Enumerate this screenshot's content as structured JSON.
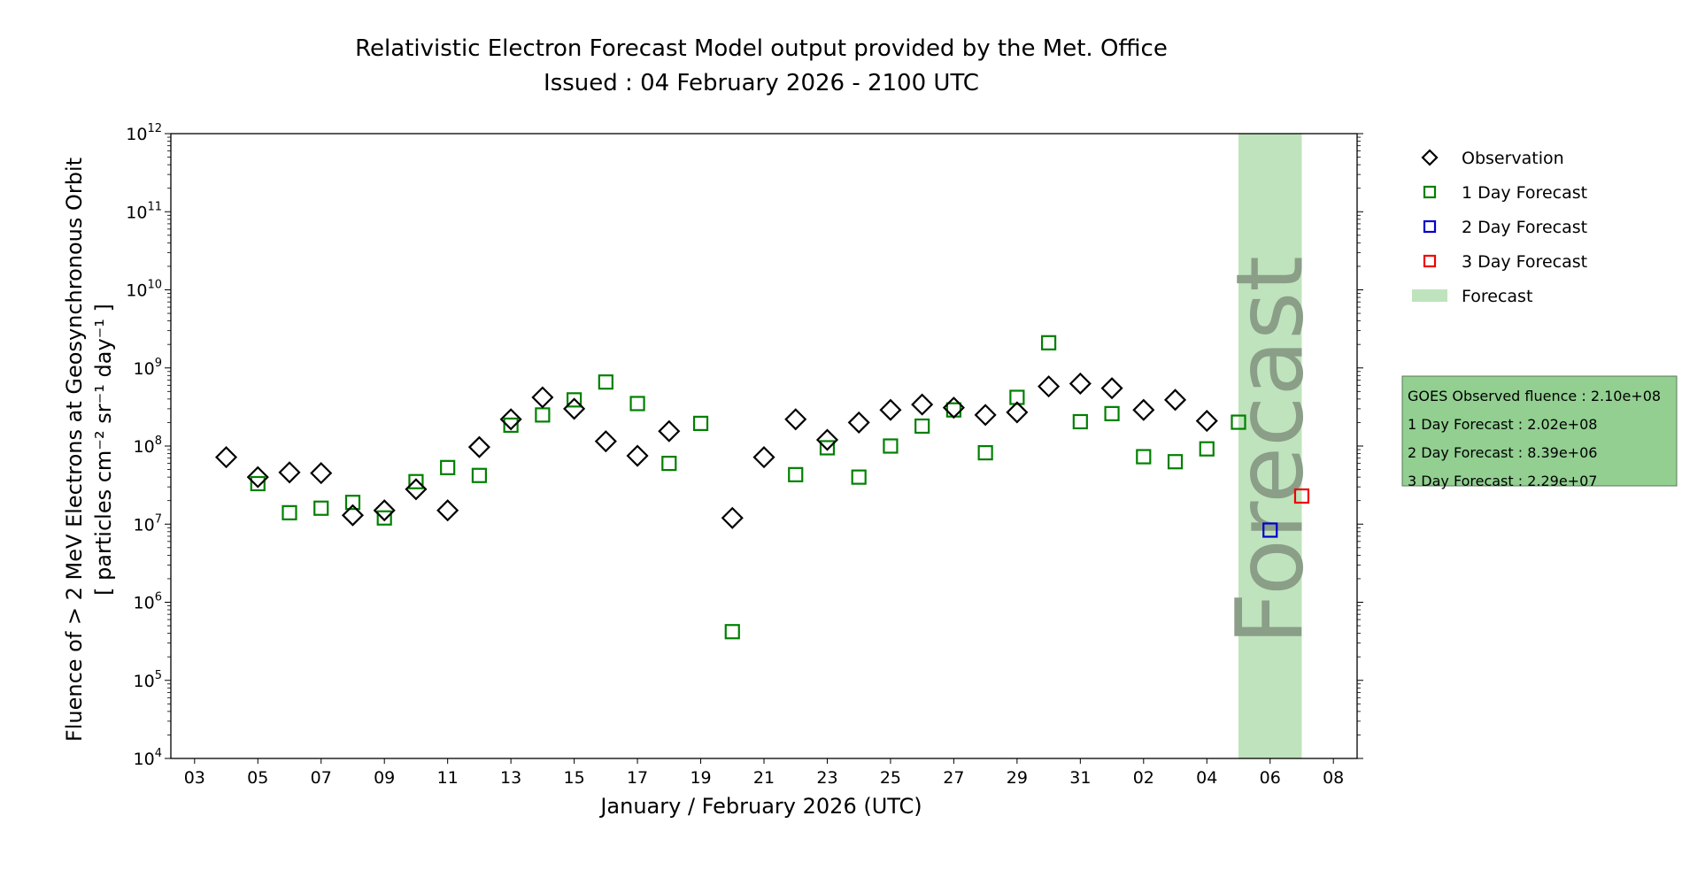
{
  "chart_data": {
    "type": "scatter",
    "title": "Relativistic Electron Forecast Model output provided by the Met. Office",
    "subtitle": "Issued : 04 February 2026 - 2100 UTC",
    "xlabel": "January / February 2026 (UTC)",
    "ylabel_line1": "Fluence of > 2 MeV Electrons at Geosynchronous Orbit",
    "ylabel_line2": "[ particles cm⁻² sr⁻¹ day⁻¹ ]",
    "y_scale": "log",
    "ylim": [
      10000,
      1000000000000
    ],
    "y_ticks": [
      {
        "base": "10",
        "exp": "4",
        "value": 10000
      },
      {
        "base": "10",
        "exp": "5",
        "value": 100000
      },
      {
        "base": "10",
        "exp": "6",
        "value": 1000000
      },
      {
        "base": "10",
        "exp": "7",
        "value": 10000000
      },
      {
        "base": "10",
        "exp": "8",
        "value": 100000000
      },
      {
        "base": "10",
        "exp": "9",
        "value": 1000000000
      },
      {
        "base": "10",
        "exp": "10",
        "value": 10000000000
      },
      {
        "base": "10",
        "exp": "11",
        "value": 100000000000
      },
      {
        "base": "10",
        "exp": "12",
        "value": 1000000000000
      }
    ],
    "xlim": [
      "2026-01-02T06:00",
      "2026-02-08T18:00"
    ],
    "x_ticks": [
      {
        "label": "03",
        "date": "2026-01-03"
      },
      {
        "label": "05",
        "date": "2026-01-05"
      },
      {
        "label": "07",
        "date": "2026-01-07"
      },
      {
        "label": "09",
        "date": "2026-01-09"
      },
      {
        "label": "11",
        "date": "2026-01-11"
      },
      {
        "label": "13",
        "date": "2026-01-13"
      },
      {
        "label": "15",
        "date": "2026-01-15"
      },
      {
        "label": "17",
        "date": "2026-01-17"
      },
      {
        "label": "19",
        "date": "2026-01-19"
      },
      {
        "label": "21",
        "date": "2026-01-21"
      },
      {
        "label": "23",
        "date": "2026-01-23"
      },
      {
        "label": "25",
        "date": "2026-01-25"
      },
      {
        "label": "27",
        "date": "2026-01-27"
      },
      {
        "label": "29",
        "date": "2026-01-29"
      },
      {
        "label": "31",
        "date": "2026-01-31"
      },
      {
        "label": "02",
        "date": "2026-02-02"
      },
      {
        "label": "04",
        "date": "2026-02-04"
      },
      {
        "label": "06",
        "date": "2026-02-06"
      },
      {
        "label": "08",
        "date": "2026-02-08"
      }
    ],
    "forecast_region": {
      "start": "2026-02-05",
      "end": "2026-02-07",
      "label": "Forecast",
      "color": "#bfe3bc"
    },
    "series": [
      {
        "name": "Observation",
        "marker": "diamond",
        "color": "#000000",
        "points": [
          {
            "x": "2026-01-04",
            "y": 72000000.0
          },
          {
            "x": "2026-01-05",
            "y": 40000000.0
          },
          {
            "x": "2026-01-06",
            "y": 46000000.0
          },
          {
            "x": "2026-01-07",
            "y": 45000000.0
          },
          {
            "x": "2026-01-08",
            "y": 13000000.0
          },
          {
            "x": "2026-01-09",
            "y": 15000000.0
          },
          {
            "x": "2026-01-10",
            "y": 28000000.0
          },
          {
            "x": "2026-01-11",
            "y": 15000000.0
          },
          {
            "x": "2026-01-12",
            "y": 97000000.0
          },
          {
            "x": "2026-01-13",
            "y": 220000000.0
          },
          {
            "x": "2026-01-14",
            "y": 420000000.0
          },
          {
            "x": "2026-01-15",
            "y": 300000000.0
          },
          {
            "x": "2026-01-16",
            "y": 115000000.0
          },
          {
            "x": "2026-01-17",
            "y": 75000000.0
          },
          {
            "x": "2026-01-18",
            "y": 155000000.0
          },
          {
            "x": "2026-01-20",
            "y": 12000000.0
          },
          {
            "x": "2026-01-21",
            "y": 72000000.0
          },
          {
            "x": "2026-01-22",
            "y": 220000000.0
          },
          {
            "x": "2026-01-23",
            "y": 120000000.0
          },
          {
            "x": "2026-01-24",
            "y": 200000000.0
          },
          {
            "x": "2026-01-25",
            "y": 290000000.0
          },
          {
            "x": "2026-01-26",
            "y": 340000000.0
          },
          {
            "x": "2026-01-27",
            "y": 310000000.0
          },
          {
            "x": "2026-01-28",
            "y": 250000000.0
          },
          {
            "x": "2026-01-29",
            "y": 270000000.0
          },
          {
            "x": "2026-01-30",
            "y": 580000000.0
          },
          {
            "x": "2026-01-31",
            "y": 630000000.0
          },
          {
            "x": "2026-02-01",
            "y": 550000000.0
          },
          {
            "x": "2026-02-02",
            "y": 290000000.0
          },
          {
            "x": "2026-02-03",
            "y": 390000000.0
          },
          {
            "x": "2026-02-04",
            "y": 210000000.0
          }
        ]
      },
      {
        "name": "1 Day Forecast",
        "marker": "square",
        "color": "#008000",
        "points": [
          {
            "x": "2026-01-05",
            "y": 33000000.0
          },
          {
            "x": "2026-01-06",
            "y": 14000000.0
          },
          {
            "x": "2026-01-07",
            "y": 16000000.0
          },
          {
            "x": "2026-01-08",
            "y": 19000000.0
          },
          {
            "x": "2026-01-09",
            "y": 12000000.0
          },
          {
            "x": "2026-01-10",
            "y": 35000000.0
          },
          {
            "x": "2026-01-11",
            "y": 53000000.0
          },
          {
            "x": "2026-01-12",
            "y": 42000000.0
          },
          {
            "x": "2026-01-13",
            "y": 185000000.0
          },
          {
            "x": "2026-01-14",
            "y": 250000000.0
          },
          {
            "x": "2026-01-15",
            "y": 390000000.0
          },
          {
            "x": "2026-01-16",
            "y": 660000000.0
          },
          {
            "x": "2026-01-17",
            "y": 350000000.0
          },
          {
            "x": "2026-01-18",
            "y": 60000000.0
          },
          {
            "x": "2026-01-19",
            "y": 195000000.0
          },
          {
            "x": "2026-01-20",
            "y": 420000.0
          },
          {
            "x": "2026-01-22",
            "y": 43000000.0
          },
          {
            "x": "2026-01-23",
            "y": 95000000.0
          },
          {
            "x": "2026-01-24",
            "y": 40000000.0
          },
          {
            "x": "2026-01-25",
            "y": 100000000.0
          },
          {
            "x": "2026-01-26",
            "y": 180000000.0
          },
          {
            "x": "2026-01-27",
            "y": 290000000.0
          },
          {
            "x": "2026-01-28",
            "y": 82000000.0
          },
          {
            "x": "2026-01-29",
            "y": 420000000.0
          },
          {
            "x": "2026-01-30",
            "y": 2100000000.0
          },
          {
            "x": "2026-01-31",
            "y": 205000000.0
          },
          {
            "x": "2026-02-01",
            "y": 260000000.0
          },
          {
            "x": "2026-02-02",
            "y": 73000000.0
          },
          {
            "x": "2026-02-03",
            "y": 63000000.0
          },
          {
            "x": "2026-02-04",
            "y": 92000000.0
          },
          {
            "x": "2026-02-05",
            "y": 202000000.0
          }
        ]
      },
      {
        "name": "2 Day Forecast",
        "marker": "square",
        "color": "#0000cc",
        "points": [
          {
            "x": "2026-02-06",
            "y": 8390000.0
          }
        ]
      },
      {
        "name": "3 Day Forecast",
        "marker": "square",
        "color": "#ee0000",
        "points": [
          {
            "x": "2026-02-07",
            "y": 22900000.0
          }
        ]
      }
    ],
    "legend": {
      "placement": "outside-right-top",
      "entries": [
        {
          "label": "Observation",
          "marker": "diamond",
          "color": "#000000"
        },
        {
          "label": "1 Day Forecast",
          "marker": "square",
          "color": "#008000"
        },
        {
          "label": "2 Day Forecast",
          "marker": "square",
          "color": "#0000cc"
        },
        {
          "label": "3 Day Forecast",
          "marker": "square",
          "color": "#ee0000"
        },
        {
          "label": "Forecast",
          "marker": "patch",
          "color": "#bfe3bc"
        }
      ]
    },
    "info_box": {
      "background": "#92cf91",
      "lines": [
        "GOES Observed fluence : 2.10e+08",
        "1 Day Forecast : 2.02e+08",
        "2 Day Forecast : 8.39e+06",
        "3 Day Forecast : 2.29e+07"
      ]
    },
    "grid": false
  }
}
